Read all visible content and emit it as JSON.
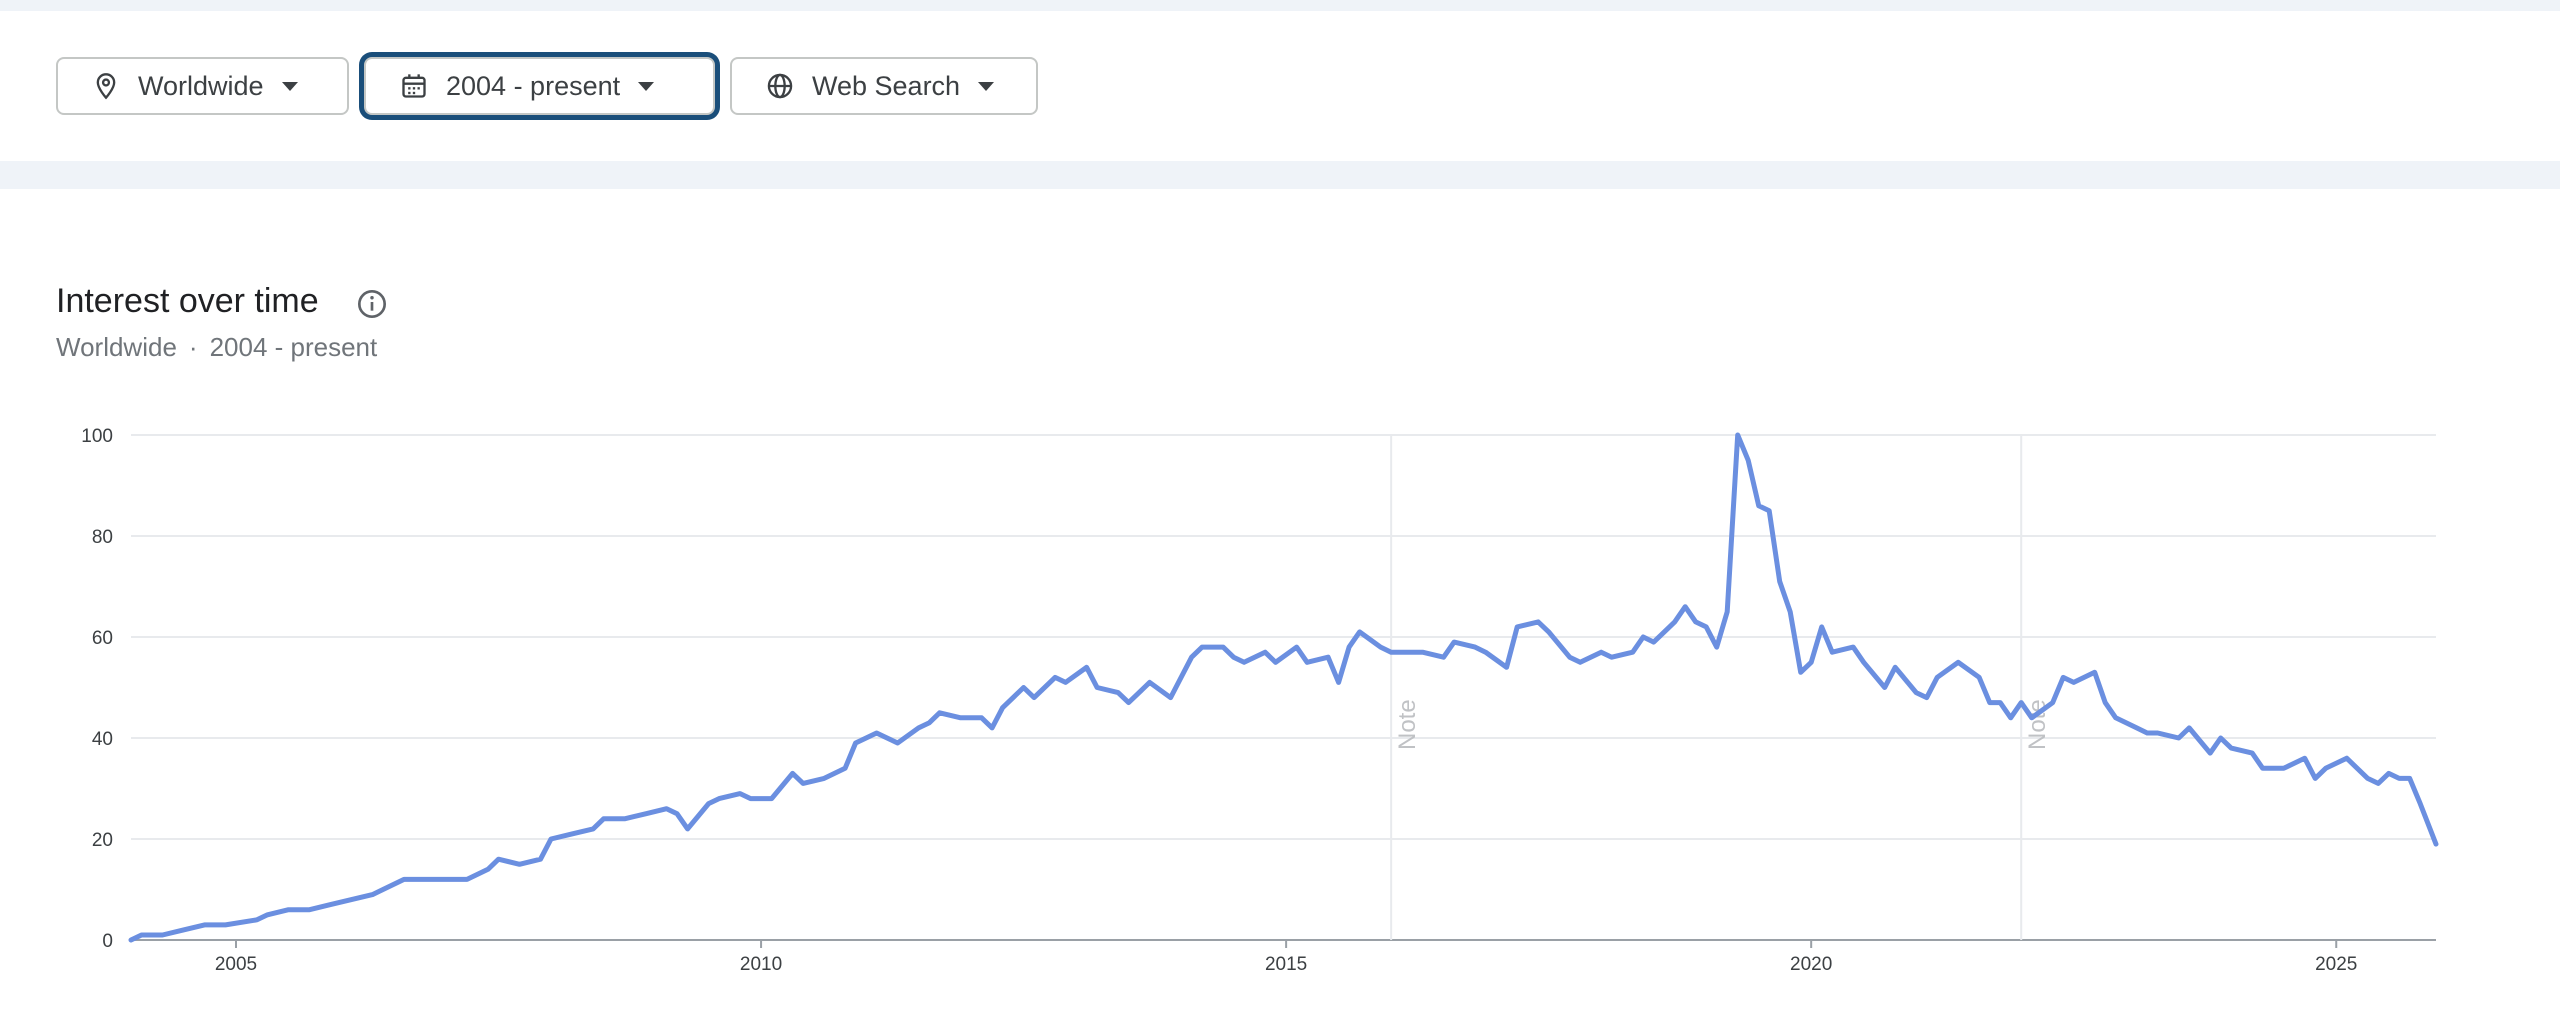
{
  "filters": {
    "location": {
      "label": "Worldwide",
      "icon": "location-pin-icon"
    },
    "time_range": {
      "label": "2004 - present",
      "icon": "calendar-icon",
      "focused": true
    },
    "property": {
      "label": "Web Search",
      "icon": "globe-icon"
    }
  },
  "section": {
    "title": "Interest over time",
    "info_icon": "info-icon",
    "subtitle_region": "Worldwide",
    "subtitle_separator": "·",
    "subtitle_range": "2004 - present"
  },
  "colors": {
    "line": "#6b8fe0",
    "grid": "#e8eaed",
    "axis": "#9aa0a6",
    "focus_ring": "#1a4e7a",
    "background_strip": "#eff3f8"
  },
  "chart_data": {
    "type": "line",
    "title": "",
    "xlabel": "",
    "ylabel": "",
    "xlim": [
      2004.0,
      2025.95
    ],
    "ylim": [
      0,
      100
    ],
    "yticks": [
      0,
      20,
      40,
      60,
      80,
      100
    ],
    "xticks": [
      2005,
      2010,
      2015,
      2020,
      2025
    ],
    "grid": true,
    "notes": [
      {
        "x": 2016.0,
        "label": "Note"
      },
      {
        "x": 2022.0,
        "label": "Note"
      }
    ],
    "series": [
      {
        "points": [
          [
            2004.0,
            0
          ],
          [
            2004.1,
            1
          ],
          [
            2004.3,
            1
          ],
          [
            2004.5,
            2
          ],
          [
            2004.7,
            3
          ],
          [
            2004.9,
            3
          ],
          [
            2005.2,
            4
          ],
          [
            2005.3,
            5
          ],
          [
            2005.5,
            6
          ],
          [
            2005.7,
            6
          ],
          [
            2005.9,
            7
          ],
          [
            2006.1,
            8
          ],
          [
            2006.3,
            9
          ],
          [
            2006.4,
            10
          ],
          [
            2006.6,
            12
          ],
          [
            2006.9,
            12
          ],
          [
            2007.2,
            12
          ],
          [
            2007.4,
            14
          ],
          [
            2007.5,
            16
          ],
          [
            2007.7,
            15
          ],
          [
            2007.9,
            16
          ],
          [
            2008.0,
            20
          ],
          [
            2008.2,
            21
          ],
          [
            2008.4,
            22
          ],
          [
            2008.5,
            24
          ],
          [
            2008.7,
            24
          ],
          [
            2008.9,
            25
          ],
          [
            2009.1,
            26
          ],
          [
            2009.2,
            25
          ],
          [
            2009.3,
            22
          ],
          [
            2009.5,
            27
          ],
          [
            2009.6,
            28
          ],
          [
            2009.8,
            29
          ],
          [
            2009.9,
            28
          ],
          [
            2010.1,
            28
          ],
          [
            2010.3,
            33
          ],
          [
            2010.4,
            31
          ],
          [
            2010.6,
            32
          ],
          [
            2010.8,
            34
          ],
          [
            2010.9,
            39
          ],
          [
            2011.1,
            41
          ],
          [
            2011.2,
            40
          ],
          [
            2011.3,
            39
          ],
          [
            2011.5,
            42
          ],
          [
            2011.6,
            43
          ],
          [
            2011.7,
            45
          ],
          [
            2011.9,
            44
          ],
          [
            2012.1,
            44
          ],
          [
            2012.2,
            42
          ],
          [
            2012.3,
            46
          ],
          [
            2012.5,
            50
          ],
          [
            2012.6,
            48
          ],
          [
            2012.8,
            52
          ],
          [
            2012.9,
            51
          ],
          [
            2013.1,
            54
          ],
          [
            2013.2,
            50
          ],
          [
            2013.4,
            49
          ],
          [
            2013.5,
            47
          ],
          [
            2013.6,
            49
          ],
          [
            2013.7,
            51
          ],
          [
            2013.9,
            48
          ],
          [
            2014.0,
            52
          ],
          [
            2014.1,
            56
          ],
          [
            2014.2,
            58
          ],
          [
            2014.4,
            58
          ],
          [
            2014.5,
            56
          ],
          [
            2014.6,
            55
          ],
          [
            2014.8,
            57
          ],
          [
            2014.9,
            55
          ],
          [
            2015.1,
            58
          ],
          [
            2015.2,
            55
          ],
          [
            2015.4,
            56
          ],
          [
            2015.5,
            51
          ],
          [
            2015.6,
            58
          ],
          [
            2015.7,
            61
          ],
          [
            2015.9,
            58
          ],
          [
            2016.0,
            57
          ],
          [
            2016.2,
            57
          ],
          [
            2016.3,
            57
          ],
          [
            2016.5,
            56
          ],
          [
            2016.6,
            59
          ],
          [
            2016.8,
            58
          ],
          [
            2016.9,
            57
          ],
          [
            2017.1,
            54
          ],
          [
            2017.2,
            62
          ],
          [
            2017.4,
            63
          ],
          [
            2017.5,
            61
          ],
          [
            2017.7,
            56
          ],
          [
            2017.8,
            55
          ],
          [
            2018.0,
            57
          ],
          [
            2018.1,
            56
          ],
          [
            2018.3,
            57
          ],
          [
            2018.4,
            60
          ],
          [
            2018.5,
            59
          ],
          [
            2018.7,
            63
          ],
          [
            2018.8,
            66
          ],
          [
            2018.9,
            63
          ],
          [
            2019.0,
            62
          ],
          [
            2019.1,
            58
          ],
          [
            2019.2,
            65
          ],
          [
            2019.3,
            100
          ],
          [
            2019.4,
            95
          ],
          [
            2019.5,
            86
          ],
          [
            2019.6,
            85
          ],
          [
            2019.7,
            71
          ],
          [
            2019.8,
            65
          ],
          [
            2019.9,
            53
          ],
          [
            2020.0,
            55
          ],
          [
            2020.1,
            62
          ],
          [
            2020.2,
            57
          ],
          [
            2020.4,
            58
          ],
          [
            2020.5,
            55
          ],
          [
            2020.7,
            50
          ],
          [
            2020.8,
            54
          ],
          [
            2021.0,
            49
          ],
          [
            2021.1,
            48
          ],
          [
            2021.2,
            52
          ],
          [
            2021.4,
            55
          ],
          [
            2021.6,
            52
          ],
          [
            2021.7,
            47
          ],
          [
            2021.8,
            47
          ],
          [
            2021.9,
            44
          ],
          [
            2022.0,
            47
          ],
          [
            2022.1,
            44
          ],
          [
            2022.3,
            47
          ],
          [
            2022.4,
            52
          ],
          [
            2022.5,
            51
          ],
          [
            2022.7,
            53
          ],
          [
            2022.8,
            47
          ],
          [
            2022.9,
            44
          ],
          [
            2023.1,
            42
          ],
          [
            2023.2,
            41
          ],
          [
            2023.3,
            41
          ],
          [
            2023.5,
            40
          ],
          [
            2023.6,
            42
          ],
          [
            2023.8,
            37
          ],
          [
            2023.9,
            40
          ],
          [
            2024.0,
            38
          ],
          [
            2024.2,
            37
          ],
          [
            2024.3,
            34
          ],
          [
            2024.5,
            34
          ],
          [
            2024.7,
            36
          ],
          [
            2024.8,
            32
          ],
          [
            2024.9,
            34
          ],
          [
            2025.1,
            36
          ],
          [
            2025.2,
            34
          ],
          [
            2025.3,
            32
          ],
          [
            2025.4,
            31
          ],
          [
            2025.5,
            33
          ],
          [
            2025.6,
            32
          ],
          [
            2025.7,
            32
          ],
          [
            2025.8,
            27
          ],
          [
            2025.95,
            19
          ]
        ]
      }
    ]
  }
}
